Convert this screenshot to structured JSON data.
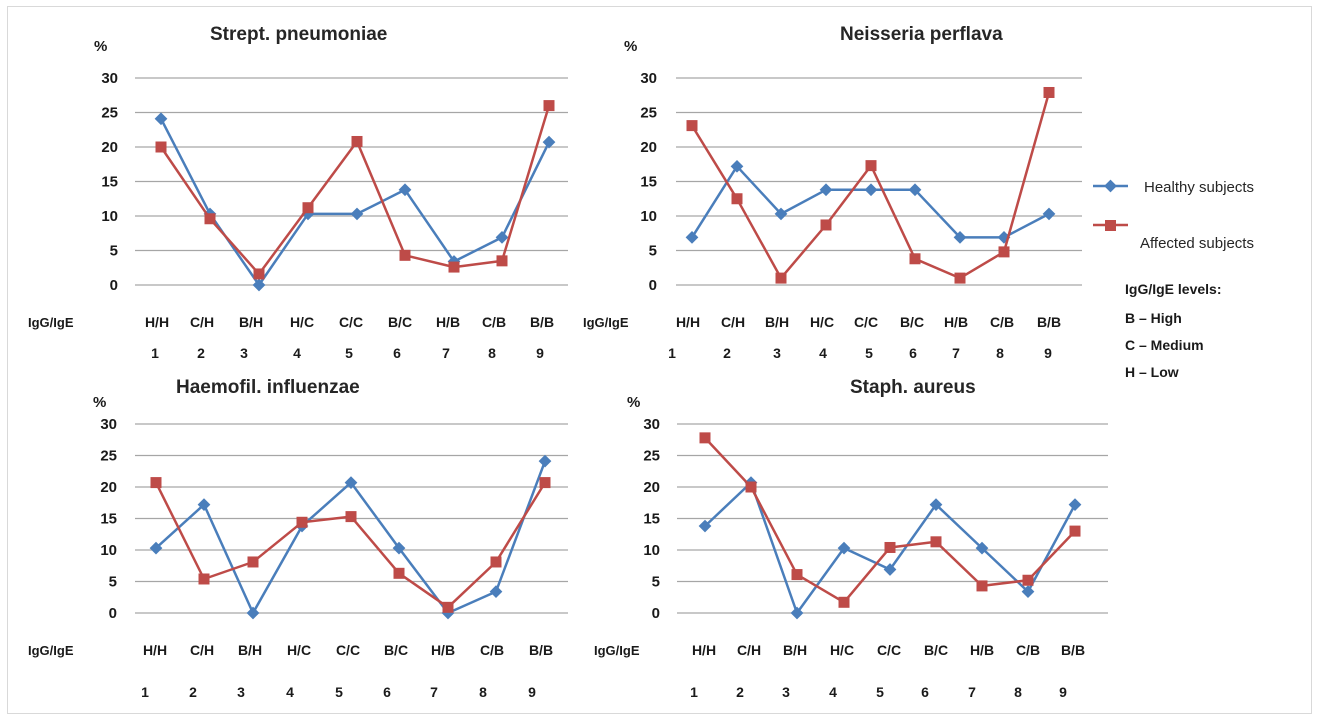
{
  "colors": {
    "healthy": "#4a7ebb",
    "affected": "#be4b48",
    "grid": "#a6a6a6"
  },
  "legend": {
    "healthy": "Healthy subjects",
    "affected": "Affected subjects",
    "levels_title": "IgG/IgE levels:",
    "levels": [
      "B – High",
      "C – Medium",
      "H – Low"
    ]
  },
  "chart_data": [
    {
      "type": "line",
      "title": "Strept. pneumoniae",
      "ylabel": "%",
      "xlabel": "IgG/IgE",
      "ylim": [
        0,
        30
      ],
      "yticks": [
        "0",
        "5",
        "10",
        "15",
        "20",
        "25",
        "30"
      ],
      "categories": [
        "H/H",
        "C/H",
        "B/H",
        "H/C",
        "C/C",
        "B/C",
        "H/B",
        "C/B",
        "B/B"
      ],
      "numbers": [
        "1",
        "2",
        "3",
        "4",
        "5",
        "6",
        "7",
        "8",
        "9"
      ],
      "series": [
        {
          "name": "Healthy subjects",
          "values": [
            24.1,
            10.3,
            0,
            10.3,
            10.3,
            13.8,
            3.4,
            6.9,
            20.7
          ]
        },
        {
          "name": "Affected subjects",
          "values": [
            20,
            9.6,
            1.6,
            11.2,
            20.8,
            4.3,
            2.6,
            3.5,
            26
          ]
        }
      ]
    },
    {
      "type": "line",
      "title": "Neisseria perflava",
      "ylabel": "%",
      "xlabel": "IgG/IgE",
      "ylim": [
        0,
        30
      ],
      "yticks": [
        "0",
        "5",
        "10",
        "15",
        "20",
        "25",
        "30"
      ],
      "categories": [
        "H/H",
        "C/H",
        "B/H",
        "H/C",
        "C/C",
        "B/C",
        "H/B",
        "C/B",
        "B/B"
      ],
      "numbers": [
        "1",
        "2",
        "3",
        "4",
        "5",
        "6",
        "7",
        "8",
        "9"
      ],
      "series": [
        {
          "name": "Healthy subjects",
          "values": [
            6.9,
            17.2,
            10.3,
            13.8,
            13.8,
            13.8,
            6.9,
            6.9,
            10.3
          ]
        },
        {
          "name": "Affected subjects",
          "values": [
            23.1,
            12.5,
            1,
            8.7,
            17.3,
            3.8,
            1,
            4.8,
            27.9
          ]
        }
      ]
    },
    {
      "type": "line",
      "title": "Haemofil. influenzae",
      "ylabel": "%",
      "xlabel": "IgG/IgE",
      "ylim": [
        0,
        30
      ],
      "yticks": [
        "0",
        "5",
        "10",
        "15",
        "20",
        "25",
        "30"
      ],
      "categories": [
        "H/H",
        "C/H",
        "B/H",
        "H/C",
        "C/C",
        "B/C",
        "H/B",
        "C/B",
        "B/B"
      ],
      "numbers": [
        "1",
        "2",
        "3",
        "4",
        "5",
        "6",
        "7",
        "8",
        "9"
      ],
      "series": [
        {
          "name": "Healthy subjects",
          "values": [
            10.3,
            17.2,
            0,
            13.8,
            20.7,
            10.3,
            0,
            3.4,
            24.1
          ]
        },
        {
          "name": "Affected subjects",
          "values": [
            20.7,
            5.4,
            8.1,
            14.4,
            15.3,
            6.3,
            0.9,
            8.1,
            20.7
          ]
        }
      ]
    },
    {
      "type": "line",
      "title": "Staph. aureus",
      "ylabel": "%",
      "xlabel": "IgG/IgE",
      "ylim": [
        0,
        30
      ],
      "yticks": [
        "0",
        "5",
        "10",
        "15",
        "20",
        "25",
        "30"
      ],
      "categories": [
        "H/H",
        "C/H",
        "B/H",
        "H/C",
        "C/C",
        "B/C",
        "H/B",
        "C/B",
        "B/B"
      ],
      "numbers": [
        "1",
        "2",
        "3",
        "4",
        "5",
        "6",
        "7",
        "8",
        "9"
      ],
      "series": [
        {
          "name": "Healthy subjects",
          "values": [
            13.8,
            20.7,
            0,
            10.3,
            6.9,
            17.2,
            10.3,
            3.4,
            17.2
          ]
        },
        {
          "name": "Affected subjects",
          "values": [
            27.8,
            20,
            6.1,
            1.7,
            10.4,
            11.3,
            4.3,
            5.2,
            13
          ]
        }
      ]
    }
  ]
}
